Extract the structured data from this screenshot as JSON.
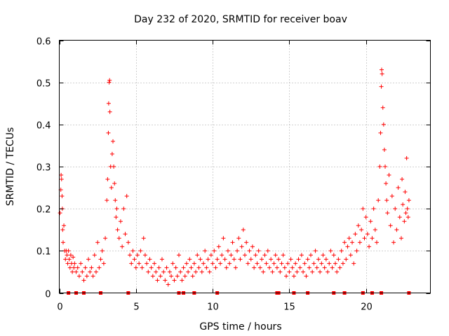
{
  "chart_data": {
    "type": "scatter",
    "title": "Day 232 of 2020, SRMTID for receiver boav",
    "xlabel": "GPS time / hours",
    "ylabel": "SRMTID / TECUs",
    "xlim": [
      0,
      24.2
    ],
    "ylim": [
      0,
      0.6
    ],
    "xticks": [
      0,
      5,
      10,
      15,
      20
    ],
    "yticks": [
      0,
      0.1,
      0.2,
      0.3,
      0.4,
      0.5,
      0.6
    ],
    "ytick_labels": [
      "0",
      "0.1",
      "0.2",
      "0.3",
      "0.4",
      "0.5",
      "0.6"
    ],
    "grid": true,
    "marker": "+",
    "color": "#ff0000",
    "series": [
      {
        "name": "SRMTID",
        "points": [
          [
            0.05,
            0.19
          ],
          [
            0.1,
            0.245
          ],
          [
            0.12,
            0.28
          ],
          [
            0.15,
            0.27
          ],
          [
            0.18,
            0.23
          ],
          [
            0.2,
            0.2
          ],
          [
            0.22,
            0.15
          ],
          [
            0.25,
            0.12
          ],
          [
            0.3,
            0.16
          ],
          [
            0.35,
            0.1
          ],
          [
            0.4,
            0.08
          ],
          [
            0.45,
            0.1
          ],
          [
            0.5,
            0.09
          ],
          [
            0.55,
            0.07
          ],
          [
            0.6,
            0.1
          ],
          [
            0.65,
            0.08
          ],
          [
            0.7,
            0.06
          ],
          [
            0.75,
            0.09
          ],
          [
            0.8,
            0.07
          ],
          [
            0.85,
            0.05
          ],
          [
            0.9,
            0.085
          ],
          [
            0.95,
            0.06
          ],
          [
            1.0,
            0.07
          ],
          [
            1.1,
            0.05
          ],
          [
            1.2,
            0.06
          ],
          [
            1.3,
            0.04
          ],
          [
            1.4,
            0.07
          ],
          [
            1.5,
            0.05
          ],
          [
            1.6,
            0.03
          ],
          [
            1.7,
            0.06
          ],
          [
            1.8,
            0.04
          ],
          [
            1.9,
            0.08
          ],
          [
            2.0,
            0.05
          ],
          [
            2.1,
            0.06
          ],
          [
            2.2,
            0.04
          ],
          [
            2.3,
            0.09
          ],
          [
            2.4,
            0.05
          ],
          [
            2.5,
            0.12
          ],
          [
            2.6,
            0.06
          ],
          [
            2.7,
            0.08
          ],
          [
            2.8,
            0.1
          ],
          [
            2.9,
            0.07
          ],
          [
            3.0,
            0.13
          ],
          [
            3.1,
            0.22
          ],
          [
            3.15,
            0.27
          ],
          [
            3.2,
            0.38
          ],
          [
            3.22,
            0.45
          ],
          [
            3.25,
            0.5
          ],
          [
            3.28,
            0.505
          ],
          [
            3.3,
            0.43
          ],
          [
            3.35,
            0.3
          ],
          [
            3.4,
            0.25
          ],
          [
            3.45,
            0.33
          ],
          [
            3.5,
            0.36
          ],
          [
            3.55,
            0.3
          ],
          [
            3.6,
            0.26
          ],
          [
            3.65,
            0.22
          ],
          [
            3.7,
            0.18
          ],
          [
            3.75,
            0.2
          ],
          [
            3.8,
            0.15
          ],
          [
            3.9,
            0.13
          ],
          [
            4.0,
            0.17
          ],
          [
            4.1,
            0.11
          ],
          [
            4.2,
            0.2
          ],
          [
            4.3,
            0.14
          ],
          [
            4.4,
            0.23
          ],
          [
            4.5,
            0.12
          ],
          [
            4.6,
            0.09
          ],
          [
            4.7,
            0.07
          ],
          [
            4.8,
            0.1
          ],
          [
            4.9,
            0.08
          ],
          [
            5.0,
            0.06
          ],
          [
            5.1,
            0.09
          ],
          [
            5.2,
            0.07
          ],
          [
            5.3,
            0.1
          ],
          [
            5.4,
            0.06
          ],
          [
            5.5,
            0.13
          ],
          [
            5.6,
            0.09
          ],
          [
            5.7,
            0.07
          ],
          [
            5.8,
            0.05
          ],
          [
            5.9,
            0.08
          ],
          [
            6.0,
            0.06
          ],
          [
            6.1,
            0.04
          ],
          [
            6.2,
            0.07
          ],
          [
            6.3,
            0.05
          ],
          [
            6.4,
            0.03
          ],
          [
            6.5,
            0.06
          ],
          [
            6.6,
            0.04
          ],
          [
            6.7,
            0.08
          ],
          [
            6.8,
            0.05
          ],
          [
            6.9,
            0.03
          ],
          [
            7.0,
            0.06
          ],
          [
            7.1,
            0.02
          ],
          [
            7.2,
            0.05
          ],
          [
            7.3,
            0.04
          ],
          [
            7.4,
            0.07
          ],
          [
            7.5,
            0.03
          ],
          [
            7.6,
            0.06
          ],
          [
            7.7,
            0.04
          ],
          [
            7.8,
            0.09
          ],
          [
            7.9,
            0.05
          ],
          [
            8.0,
            0.03
          ],
          [
            8.1,
            0.06
          ],
          [
            8.2,
            0.04
          ],
          [
            8.3,
            0.07
          ],
          [
            8.4,
            0.05
          ],
          [
            8.5,
            0.08
          ],
          [
            8.6,
            0.06
          ],
          [
            8.7,
            0.04
          ],
          [
            8.8,
            0.07
          ],
          [
            8.9,
            0.05
          ],
          [
            9.0,
            0.09
          ],
          [
            9.1,
            0.06
          ],
          [
            9.2,
            0.08
          ],
          [
            9.3,
            0.05
          ],
          [
            9.4,
            0.07
          ],
          [
            9.5,
            0.1
          ],
          [
            9.6,
            0.06
          ],
          [
            9.7,
            0.08
          ],
          [
            9.8,
            0.05
          ],
          [
            9.9,
            0.09
          ],
          [
            10.0,
            0.07
          ],
          [
            10.1,
            0.1
          ],
          [
            10.2,
            0.06
          ],
          [
            10.3,
            0.08
          ],
          [
            10.4,
            0.11
          ],
          [
            10.5,
            0.07
          ],
          [
            10.6,
            0.09
          ],
          [
            10.7,
            0.13
          ],
          [
            10.8,
            0.08
          ],
          [
            10.9,
            0.06
          ],
          [
            11.0,
            0.1
          ],
          [
            11.1,
            0.07
          ],
          [
            11.2,
            0.09
          ],
          [
            11.3,
            0.12
          ],
          [
            11.4,
            0.08
          ],
          [
            11.5,
            0.06
          ],
          [
            11.6,
            0.1
          ],
          [
            11.7,
            0.13
          ],
          [
            11.8,
            0.08
          ],
          [
            11.9,
            0.11
          ],
          [
            12.0,
            0.15
          ],
          [
            12.1,
            0.09
          ],
          [
            12.2,
            0.12
          ],
          [
            12.3,
            0.07
          ],
          [
            12.4,
            0.1
          ],
          [
            12.5,
            0.08
          ],
          [
            12.6,
            0.11
          ],
          [
            12.7,
            0.06
          ],
          [
            12.8,
            0.09
          ],
          [
            12.9,
            0.07
          ],
          [
            13.0,
            0.1
          ],
          [
            13.1,
            0.06
          ],
          [
            13.2,
            0.08
          ],
          [
            13.3,
            0.05
          ],
          [
            13.4,
            0.09
          ],
          [
            13.5,
            0.07
          ],
          [
            13.6,
            0.1
          ],
          [
            13.7,
            0.06
          ],
          [
            13.8,
            0.08
          ],
          [
            13.9,
            0.05
          ],
          [
            14.0,
            0.07
          ],
          [
            14.1,
            0.09
          ],
          [
            14.2,
            0.06
          ],
          [
            14.3,
            0.08
          ],
          [
            14.4,
            0.05
          ],
          [
            14.5,
            0.07
          ],
          [
            14.6,
            0.09
          ],
          [
            14.7,
            0.06
          ],
          [
            14.8,
            0.04
          ],
          [
            14.9,
            0.07
          ],
          [
            15.0,
            0.05
          ],
          [
            15.1,
            0.08
          ],
          [
            15.2,
            0.06
          ],
          [
            15.3,
            0.04
          ],
          [
            15.4,
            0.07
          ],
          [
            15.5,
            0.05
          ],
          [
            15.6,
            0.08
          ],
          [
            15.7,
            0.06
          ],
          [
            15.8,
            0.09
          ],
          [
            15.9,
            0.05
          ],
          [
            16.0,
            0.07
          ],
          [
            16.1,
            0.04
          ],
          [
            16.2,
            0.08
          ],
          [
            16.3,
            0.06
          ],
          [
            16.4,
            0.09
          ],
          [
            16.5,
            0.05
          ],
          [
            16.6,
            0.07
          ],
          [
            16.7,
            0.1
          ],
          [
            16.8,
            0.06
          ],
          [
            16.9,
            0.08
          ],
          [
            17.0,
            0.05
          ],
          [
            17.1,
            0.07
          ],
          [
            17.2,
            0.09
          ],
          [
            17.3,
            0.06
          ],
          [
            17.4,
            0.08
          ],
          [
            17.5,
            0.05
          ],
          [
            17.6,
            0.07
          ],
          [
            17.7,
            0.1
          ],
          [
            17.8,
            0.06
          ],
          [
            17.9,
            0.09
          ],
          [
            18.0,
            0.07
          ],
          [
            18.1,
            0.05
          ],
          [
            18.2,
            0.08
          ],
          [
            18.3,
            0.06
          ],
          [
            18.4,
            0.1
          ],
          [
            18.5,
            0.07
          ],
          [
            18.6,
            0.12
          ],
          [
            18.7,
            0.08
          ],
          [
            18.8,
            0.11
          ],
          [
            18.9,
            0.13
          ],
          [
            19.0,
            0.09
          ],
          [
            19.1,
            0.12
          ],
          [
            19.2,
            0.07
          ],
          [
            19.3,
            0.14
          ],
          [
            19.4,
            0.1
          ],
          [
            19.5,
            0.16
          ],
          [
            19.6,
            0.12
          ],
          [
            19.7,
            0.15
          ],
          [
            19.8,
            0.2
          ],
          [
            19.9,
            0.13
          ],
          [
            20.0,
            0.18
          ],
          [
            20.1,
            0.14
          ],
          [
            20.2,
            0.11
          ],
          [
            20.3,
            0.17
          ],
          [
            20.4,
            0.13
          ],
          [
            20.5,
            0.2
          ],
          [
            20.6,
            0.15
          ],
          [
            20.7,
            0.12
          ],
          [
            20.8,
            0.22
          ],
          [
            20.9,
            0.3
          ],
          [
            20.95,
            0.38
          ],
          [
            21.0,
            0.49
          ],
          [
            21.02,
            0.53
          ],
          [
            21.05,
            0.52
          ],
          [
            21.1,
            0.44
          ],
          [
            21.15,
            0.4
          ],
          [
            21.2,
            0.34
          ],
          [
            21.25,
            0.3
          ],
          [
            21.3,
            0.26
          ],
          [
            21.35,
            0.22
          ],
          [
            21.4,
            0.19
          ],
          [
            21.5,
            0.28
          ],
          [
            21.6,
            0.16
          ],
          [
            21.7,
            0.23
          ],
          [
            21.8,
            0.12
          ],
          [
            21.9,
            0.2
          ],
          [
            22.0,
            0.15
          ],
          [
            22.1,
            0.25
          ],
          [
            22.2,
            0.18
          ],
          [
            22.3,
            0.13
          ],
          [
            22.35,
            0.27
          ],
          [
            22.4,
            0.21
          ],
          [
            22.5,
            0.17
          ],
          [
            22.55,
            0.24
          ],
          [
            22.6,
            0.19
          ],
          [
            22.65,
            0.32
          ],
          [
            22.7,
            0.2
          ],
          [
            22.75,
            0.18
          ],
          [
            22.8,
            0.22
          ]
        ]
      }
    ],
    "bottom_markers": [
      0.6,
      1.1,
      1.6,
      2.7,
      4.5,
      7.8,
      8.1,
      8.8,
      10.3,
      14.2,
      14.3,
      15.3,
      16.2,
      17.9,
      18.6,
      19.8,
      20.4,
      21.0,
      22.8
    ]
  }
}
